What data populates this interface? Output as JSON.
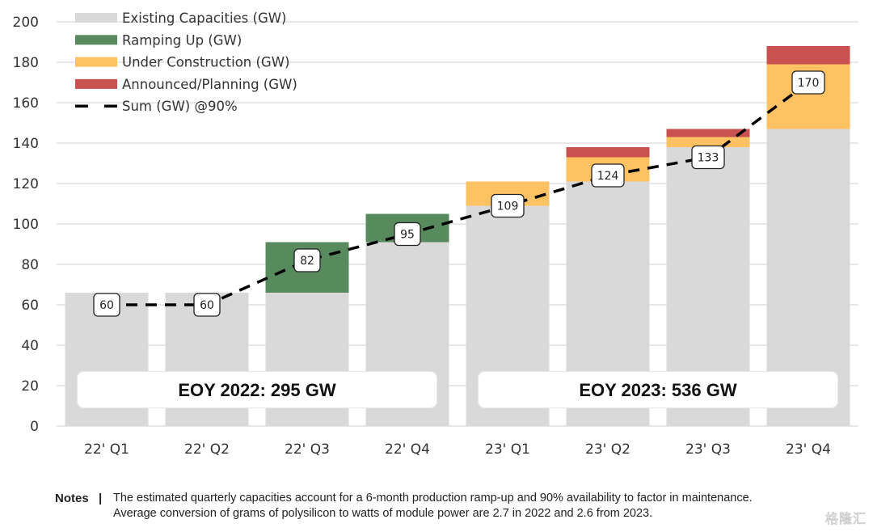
{
  "chart_data": {
    "type": "bar",
    "stacked": true,
    "title": "",
    "xlabel": "",
    "ylabel": "",
    "ylim": [
      0,
      200
    ],
    "yticks": [
      0,
      20,
      40,
      60,
      80,
      100,
      120,
      140,
      160,
      180,
      200
    ],
    "grid": true,
    "legend_position": "top-left",
    "categories": [
      "22' Q1",
      "22' Q2",
      "22' Q3",
      "22' Q4",
      "23' Q1",
      "23' Q2",
      "23' Q3",
      "23' Q4"
    ],
    "series": [
      {
        "name": "Existing Capacities (GW)",
        "color": "#D9D9D9",
        "values": [
          66,
          66,
          66,
          91,
          109,
          121,
          138,
          147
        ]
      },
      {
        "name": "Ramping Up (GW)",
        "color": "#578B5E",
        "values": [
          0,
          0,
          25,
          14,
          0,
          0,
          0,
          0
        ]
      },
      {
        "name": "Under Construction (GW)",
        "color": "#FFC263",
        "values": [
          0,
          0,
          0,
          0,
          12,
          12,
          5,
          32
        ]
      },
      {
        "name": "Announced/Planning (GW)",
        "color": "#C95150",
        "values": [
          0,
          0,
          0,
          0,
          0,
          5,
          4,
          9
        ]
      }
    ],
    "line": {
      "name": "Sum (GW) @90%",
      "color": "#000000",
      "style": "dashed",
      "values": [
        60,
        60,
        82,
        95,
        109,
        124,
        133,
        170
      ],
      "data_labels": [
        "60",
        "60",
        "82",
        "95",
        "109",
        "124",
        "133",
        "170"
      ]
    },
    "annotations": [
      {
        "text": "EOY 2022: 295 GW",
        "span": [
          "22' Q1",
          "22' Q4"
        ]
      },
      {
        "text": "EOY 2023: 536 GW",
        "span": [
          "23' Q1",
          "23' Q4"
        ]
      }
    ]
  },
  "notes": {
    "title": "Notes",
    "separator": "|",
    "lines": [
      "The estimated quarterly capacities account for a 6-month production ramp-up and 90% availability to factor in maintenance.",
      "Average conversion of grams of polysilicon to watts of module power are 2.7 in 2022 and 2.6 from 2023."
    ]
  },
  "watermark": "格隆汇"
}
